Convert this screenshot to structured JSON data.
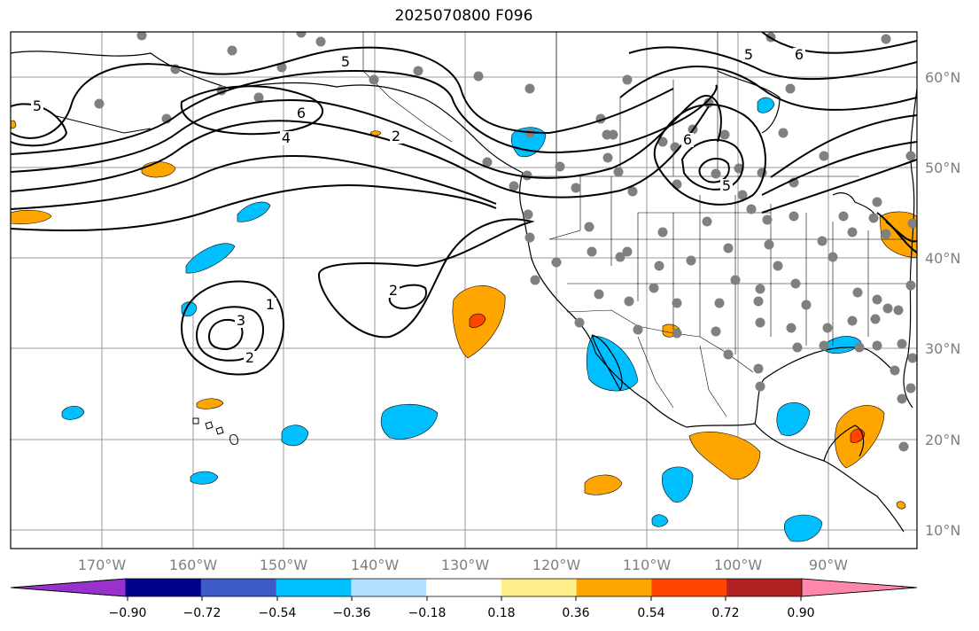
{
  "title": "2025070800 F096",
  "map": {
    "lat_labels": [
      "60°N",
      "50°N",
      "40°N",
      "30°N",
      "20°N",
      "10°N"
    ],
    "lon_labels": [
      "170°W",
      "160°W",
      "150°W",
      "140°W",
      "130°W",
      "120°W",
      "110°W",
      "100°W",
      "90°W"
    ],
    "contour_labels": [
      "5",
      "6",
      "6",
      "4",
      "2",
      "5",
      "6",
      "5",
      "5",
      "2",
      "1",
      "3",
      "2"
    ],
    "colors": {
      "contour": "#000000",
      "grid": "#999999",
      "stations": "#808080",
      "coast": "#000000"
    }
  },
  "colorbar": {
    "labels": [
      "−0.90",
      "−0.72",
      "−0.54",
      "−0.36",
      "−0.18",
      "0.18",
      "0.36",
      "0.54",
      "0.72",
      "0.90"
    ],
    "colors": [
      "#9932CC",
      "#00008B",
      "#3C5AC8",
      "#00BFFF",
      "#B0E2FF",
      "#FFFFFF",
      "#FFEC8B",
      "#FFA500",
      "#FF4500",
      "#B22222",
      "#FF88AA"
    ]
  }
}
